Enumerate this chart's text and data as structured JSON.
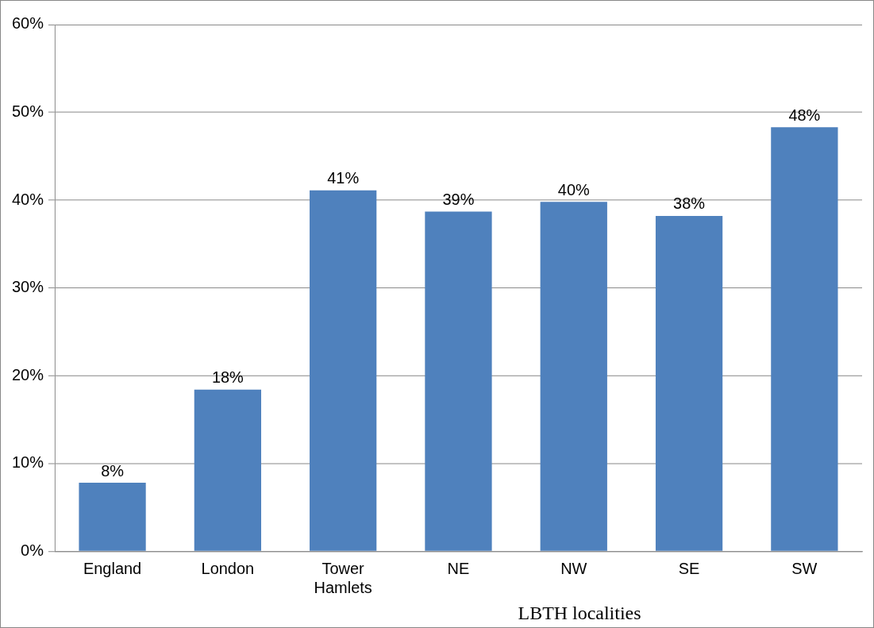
{
  "chart_data": {
    "type": "bar",
    "xlabel": "LBTH localities",
    "categories": [
      "England",
      "London",
      "Tower Hamlets",
      "NE",
      "NW",
      "SE",
      "SW"
    ],
    "values": [
      7.8,
      18.4,
      41.1,
      38.7,
      39.8,
      38.2,
      48.3
    ],
    "value_labels": [
      "8%",
      "18%",
      "41%",
      "39%",
      "40%",
      "38%",
      "48%"
    ],
    "color": "#4f81bd",
    "ylim": [
      0,
      60
    ],
    "yticks": [
      {
        "value": 0,
        "label": "0%"
      },
      {
        "value": 10,
        "label": "10%"
      },
      {
        "value": 20,
        "label": "20%"
      },
      {
        "value": 30,
        "label": "30%"
      },
      {
        "value": 40,
        "label": "40%"
      },
      {
        "value": 50,
        "label": "50%"
      },
      {
        "value": 60,
        "label": "60%"
      }
    ],
    "grid": "y"
  }
}
